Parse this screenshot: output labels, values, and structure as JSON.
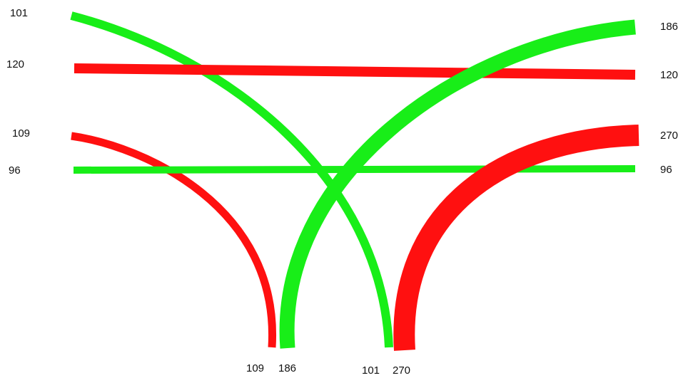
{
  "colors": {
    "red": "#ff1010",
    "green": "#18ee18",
    "label": "#111111",
    "background": "#ffffff"
  },
  "flows": [
    {
      "id": "green-101",
      "color": "green",
      "value": 101,
      "left_label": "101",
      "right_label": "",
      "bottom_label": "101"
    },
    {
      "id": "red-120",
      "color": "red",
      "value": 120,
      "left_label": "120",
      "right_label": "120",
      "bottom_label": ""
    },
    {
      "id": "green-186",
      "color": "green",
      "value": 186,
      "left_label": "",
      "right_label": "186",
      "bottom_label": "186"
    },
    {
      "id": "red-109",
      "color": "red",
      "value": 109,
      "left_label": "109",
      "right_label": "",
      "bottom_label": "109"
    },
    {
      "id": "green-96",
      "color": "green",
      "value": 96,
      "left_label": "96",
      "right_label": "96",
      "bottom_label": ""
    },
    {
      "id": "red-270",
      "color": "red",
      "value": 270,
      "left_label": "",
      "right_label": "270",
      "bottom_label": "270"
    }
  ]
}
